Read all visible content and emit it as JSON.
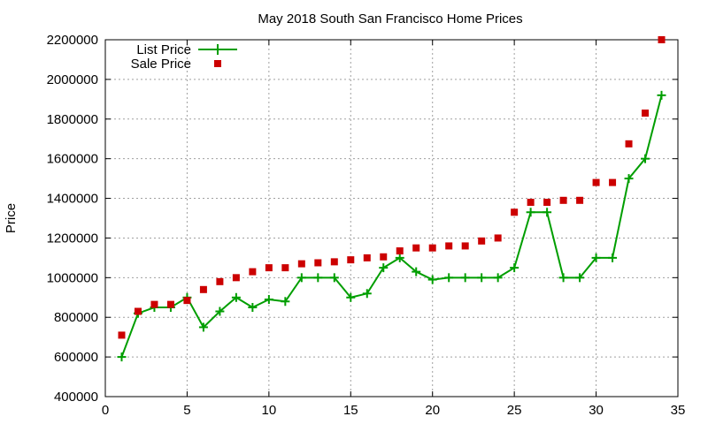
{
  "chart_data": {
    "type": "line",
    "title": "May 2018 South San Francisco Home Prices",
    "xlabel": "",
    "ylabel": "Price",
    "xlim": [
      0,
      35
    ],
    "ylim": [
      400000,
      2200000
    ],
    "x_ticks": [
      0,
      5,
      10,
      15,
      20,
      25,
      30,
      35
    ],
    "y_ticks": [
      400000,
      600000,
      800000,
      1000000,
      1200000,
      1400000,
      1600000,
      1800000,
      2000000,
      2200000
    ],
    "x_tick_labels": [
      "0",
      "5",
      "10",
      "15",
      "20",
      "25",
      "30",
      "35"
    ],
    "y_tick_labels": [
      "400000",
      "600000",
      "800000",
      "1000000",
      "1200000",
      "1400000",
      "1600000",
      "1800000",
      "2000000",
      "2200000"
    ],
    "grid": true,
    "legend_position": "top-left",
    "series": [
      {
        "name": "List Price",
        "style": "line-with-plus-markers",
        "color": "#009e00",
        "x": [
          1,
          2,
          3,
          4,
          5,
          6,
          7,
          8,
          9,
          10,
          11,
          12,
          13,
          14,
          15,
          16,
          17,
          18,
          19,
          20,
          21,
          22,
          23,
          24,
          25,
          26,
          27,
          28,
          29,
          30,
          31,
          32,
          33,
          34
        ],
        "values": [
          600000,
          820000,
          850000,
          850000,
          900000,
          750000,
          830000,
          900000,
          850000,
          890000,
          880000,
          1000000,
          1000000,
          1000000,
          900000,
          920000,
          1050000,
          1100000,
          1030000,
          990000,
          1000000,
          1000000,
          1000000,
          1000000,
          1050000,
          1330000,
          1330000,
          1000000,
          1000000,
          1100000,
          1100000,
          1500000,
          1600000,
          1920000
        ]
      },
      {
        "name": "Sale Price",
        "style": "square-markers",
        "color": "#cc0000",
        "x": [
          1,
          2,
          3,
          4,
          5,
          6,
          7,
          8,
          9,
          10,
          11,
          12,
          13,
          14,
          15,
          16,
          17,
          18,
          19,
          20,
          21,
          22,
          23,
          24,
          25,
          26,
          27,
          28,
          29,
          30,
          31,
          32,
          33,
          34
        ],
        "values": [
          710000,
          830000,
          865000,
          865000,
          885000,
          940000,
          980000,
          1000000,
          1030000,
          1050000,
          1050000,
          1070000,
          1075000,
          1080000,
          1090000,
          1100000,
          1105000,
          1135000,
          1150000,
          1150000,
          1160000,
          1160000,
          1185000,
          1200000,
          1330000,
          1380000,
          1380000,
          1390000,
          1390000,
          1480000,
          1480000,
          1675000,
          1830000,
          2200000
        ]
      }
    ]
  }
}
